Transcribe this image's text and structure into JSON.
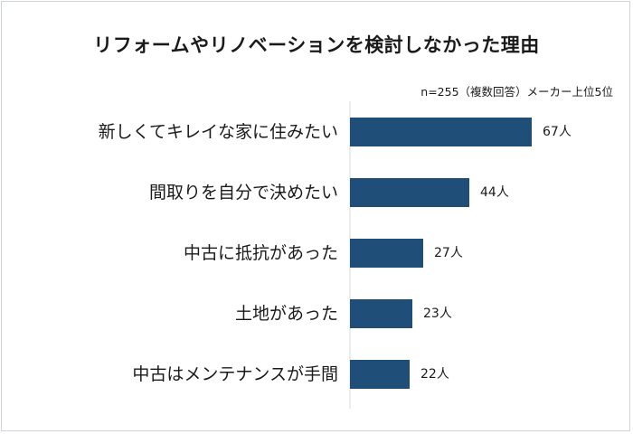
{
  "chart_data": {
    "type": "bar",
    "orientation": "horizontal",
    "title": "リフォームやリノベーションを検討しなかった理由",
    "note": "n=255（複数回答）メーカー上位5位",
    "categories": [
      "新しくてキレイな家に住みたい",
      "間取りを自分で決めたい",
      "中古に抵抗があった",
      "土地があった",
      "中古はメンテナンスが手間"
    ],
    "values": [
      67,
      44,
      27,
      23,
      22
    ],
    "value_labels": [
      "67人",
      "44人",
      "27人",
      "23人",
      "22人"
    ],
    "xlim": [
      0,
      100
    ],
    "grid": false,
    "legend": "none",
    "bar_color": "#1f4e79"
  }
}
